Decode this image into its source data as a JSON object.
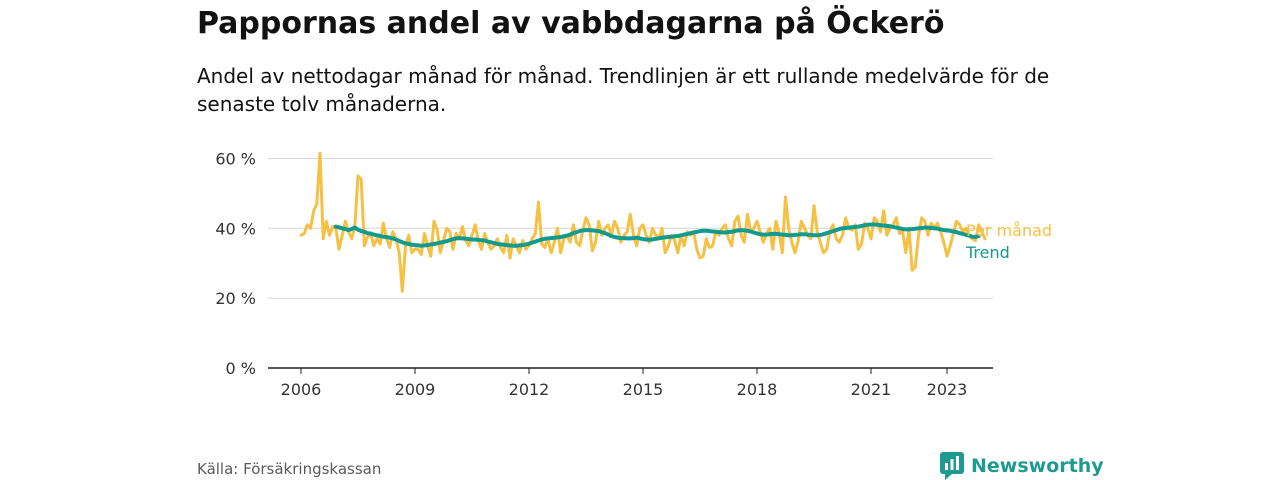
{
  "title": "Pappornas andel av vabbdagarna på Öckerö",
  "subtitle": "Andel av nettodagar månad för månad. Trendlinjen är ett rullande medelvärde för de senaste tolv månaderna.",
  "source": "Källa: Försäkringskassan",
  "brand": {
    "name": "Newsworthy",
    "color": "#1f9a91",
    "icon": "newsworthy-logo-icon"
  },
  "chart_data": {
    "type": "line",
    "title": "Pappornas andel av vabbdagarna på Öckerö",
    "xlabel": "",
    "ylabel": "",
    "xlim": [
      "2006-01",
      "2023-12"
    ],
    "ylim": [
      0,
      65
    ],
    "yticks": [
      0,
      20,
      40,
      60
    ],
    "ytick_labels": [
      "0 %",
      "20 %",
      "40 %",
      "60 %"
    ],
    "xticks": [
      "2006-01",
      "2009-01",
      "2012-01",
      "2015-01",
      "2018-01",
      "2021-01",
      "2023-01"
    ],
    "xtick_labels": [
      "2006",
      "2009",
      "2012",
      "2015",
      "2018",
      "2021",
      "2023"
    ],
    "grid": true,
    "legend": "inline-right",
    "series": [
      {
        "name": "Per månad",
        "color": "#f5c044",
        "start": "2006-01",
        "values": [
          38,
          38.5,
          41,
          40,
          45,
          47,
          61.5,
          37,
          42,
          38,
          40.5,
          40,
          34,
          38,
          42,
          39,
          37,
          40.5,
          55,
          54,
          35,
          37.5,
          38.5,
          35,
          37,
          35.5,
          41.5,
          37,
          34.5,
          39,
          37,
          33,
          22,
          35,
          38,
          33,
          34,
          34,
          32.5,
          38.5,
          35,
          32,
          42,
          39.5,
          33,
          36.5,
          40,
          39,
          34,
          38.5,
          37,
          40.5,
          36.5,
          35,
          38,
          41,
          36.5,
          34,
          38.5,
          36,
          34,
          35,
          37,
          34.5,
          33,
          38,
          31.5,
          37,
          35,
          33,
          36.5,
          34,
          35,
          37,
          38.5,
          47.5,
          35.5,
          34.5,
          37,
          33,
          36,
          40,
          33,
          37,
          38,
          36,
          41,
          36,
          35,
          39.5,
          43,
          41,
          33.5,
          36,
          42,
          38,
          40,
          41,
          38,
          42,
          40,
          36,
          38,
          39,
          44,
          38,
          35,
          40,
          41,
          38,
          36,
          40,
          38,
          37,
          40,
          33,
          35,
          38,
          36.5,
          33,
          38,
          35,
          39,
          38,
          39,
          34,
          31.5,
          32,
          37,
          34.5,
          35,
          39,
          38,
          40,
          41,
          37,
          35,
          42,
          43.5,
          38,
          36,
          44,
          39,
          40,
          42,
          39,
          36,
          38.5,
          40,
          34,
          42,
          38.5,
          33,
          49,
          40,
          36,
          33,
          36.5,
          42,
          40,
          38,
          37,
          46.5,
          39,
          36,
          33,
          34,
          39,
          41,
          37,
          36,
          38,
          43,
          40,
          39.5,
          41,
          34,
          35.5,
          41.5,
          40,
          37,
          43,
          42,
          39,
          45,
          38,
          40,
          41,
          43,
          38.5,
          39,
          33,
          40,
          28,
          29,
          38,
          43,
          42,
          38,
          41.5,
          40,
          41.5,
          39,
          36,
          32,
          35,
          38.5,
          42,
          41,
          39,
          40,
          38,
          37,
          36.5,
          41,
          39,
          37
        ]
      },
      {
        "name": "Trend",
        "color": "#14998d",
        "start": "2006-12",
        "values": [
          40.5,
          40.3,
          40,
          39.8,
          39.5,
          39.8,
          40.2,
          39.6,
          39.2,
          39,
          38.6,
          38.5,
          38.2,
          38,
          37.8,
          37.6,
          37.5,
          37.3,
          37.1,
          36.8,
          36.4,
          36,
          35.7,
          35.5,
          35.3,
          35.2,
          35.1,
          35,
          35.1,
          35.2,
          35.4,
          35.5,
          35.7,
          35.9,
          36.1,
          36.3,
          36.6,
          36.9,
          37.1,
          37.2,
          37.1,
          37,
          36.9,
          36.8,
          36.8,
          36.7,
          36.6,
          36.5,
          36.2,
          36,
          35.8,
          35.5,
          35.4,
          35.3,
          35.2,
          35.1,
          35,
          35,
          35.1,
          35.2,
          35.4,
          35.6,
          35.9,
          36.2,
          36.5,
          36.8,
          37,
          37.1,
          37.2,
          37.3,
          37.4,
          37.5,
          37.7,
          37.9,
          38.2,
          38.6,
          38.9,
          39.2,
          39.4,
          39.5,
          39.5,
          39.4,
          39.3,
          39.2,
          38.9,
          38.6,
          38.2,
          37.8,
          37.5,
          37.3,
          37.2,
          37.2,
          37.1,
          37.1,
          37.2,
          37.3,
          37.1,
          36.9,
          36.8,
          36.7,
          36.8,
          37,
          37.1,
          37.3,
          37.4,
          37.5,
          37.6,
          37.7,
          37.8,
          38,
          38.2,
          38.4,
          38.6,
          38.8,
          39,
          39.2,
          39.3,
          39.3,
          39.2,
          39.1,
          39,
          38.9,
          38.8,
          38.8,
          38.9,
          39,
          39.2,
          39.4,
          39.5,
          39.4,
          39.3,
          39.1,
          38.8,
          38.5,
          38.3,
          38.2,
          38.2,
          38.3,
          38.4,
          38.4,
          38.3,
          38.2,
          38.1,
          38,
          38,
          38.1,
          38.2,
          38.3,
          38.3,
          38.2,
          38.1,
          38,
          38,
          38.1,
          38.3,
          38.6,
          38.9,
          39.2,
          39.5,
          39.8,
          40,
          40.1,
          40.2,
          40.3,
          40.4,
          40.5,
          40.7,
          40.9,
          41,
          41.1,
          41.1,
          41,
          40.9,
          40.8,
          40.7,
          40.6,
          40.4,
          40.2,
          40,
          39.8,
          39.7,
          39.7,
          39.8,
          39.9,
          40,
          40.1,
          40.2,
          40.2,
          40.1,
          40,
          39.9,
          39.7,
          39.5,
          39.4,
          39.3,
          39.1,
          38.9,
          38.6,
          38.4,
          38.1,
          37.9,
          37.6,
          37.5,
          37.8
        ]
      }
    ]
  }
}
